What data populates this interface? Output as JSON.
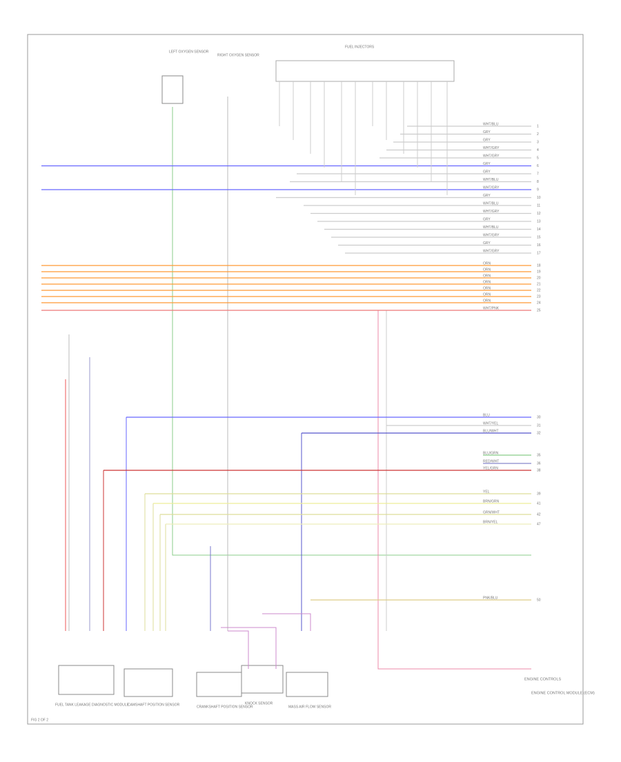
{
  "diagram": {
    "title": "ENGINE CONTROLS",
    "page_label": "FIG 2 OF 2",
    "top_components": [
      "LEFT OXYGEN SENSOR",
      "RIGHT OXYGEN SENSOR",
      "FUEL INJECTORS"
    ],
    "bottom_components": [
      "FUEL TANK LEAKAGE DIAGNOSTIC MODULE",
      "CAMSHAFT POSITION SENSOR",
      "CRANKSHAFT POSITION SENSOR",
      "KNOCK SENSOR",
      "MASS AIR FLOW SENSOR"
    ],
    "module": "ENGINE CONTROL MODULE (ECM)",
    "wires": [
      {
        "label": "WHT/BLU",
        "pin": "1"
      },
      {
        "label": "GRY",
        "pin": "2"
      },
      {
        "label": "GRY",
        "pin": "3"
      },
      {
        "label": "WHT/GRY",
        "pin": "4"
      },
      {
        "label": "WHT/GRY",
        "pin": "5"
      },
      {
        "label": "GRY",
        "pin": "6"
      },
      {
        "label": "GRY",
        "pin": "7"
      },
      {
        "label": "WHT/BLU",
        "pin": "8"
      },
      {
        "label": "WHT/GRY",
        "pin": "9"
      },
      {
        "label": "GRY",
        "pin": "10"
      },
      {
        "label": "WHT/BLU",
        "pin": "11"
      },
      {
        "label": "WHT/GRY",
        "pin": "12"
      },
      {
        "label": "GRY",
        "pin": "13"
      },
      {
        "label": "WHT/BLU",
        "pin": "14"
      },
      {
        "label": "WHT/GRY",
        "pin": "15"
      },
      {
        "label": "GRY",
        "pin": "16"
      },
      {
        "label": "WHT/GRY",
        "pin": "17"
      },
      {
        "label": "ORN",
        "pin": "18"
      },
      {
        "label": "ORN",
        "pin": "19"
      },
      {
        "label": "ORN",
        "pin": "20"
      },
      {
        "label": "ORN",
        "pin": "21"
      },
      {
        "label": "ORN",
        "pin": "22"
      },
      {
        "label": "ORN",
        "pin": "23"
      },
      {
        "label": "ORN",
        "pin": "24"
      },
      {
        "label": "WHT/PNK",
        "pin": "25"
      },
      {
        "label": "BLU",
        "pin": "30"
      },
      {
        "label": "WHT/YEL",
        "pin": "31"
      },
      {
        "label": "BLU/WHT",
        "pin": "32"
      },
      {
        "label": "BLU/GRN",
        "pin": "35"
      },
      {
        "label": "RED/WHT",
        "pin": "36"
      },
      {
        "label": "YEL/GRN",
        "pin": "38"
      },
      {
        "label": "YEL",
        "pin": "39"
      },
      {
        "label": "BRN/GRN",
        "pin": "41"
      },
      {
        "label": "GRN/WHT",
        "pin": "42"
      },
      {
        "label": "BRN/YEL",
        "pin": "47"
      },
      {
        "label": "PNK/BLU",
        "pin": "50"
      }
    ]
  }
}
